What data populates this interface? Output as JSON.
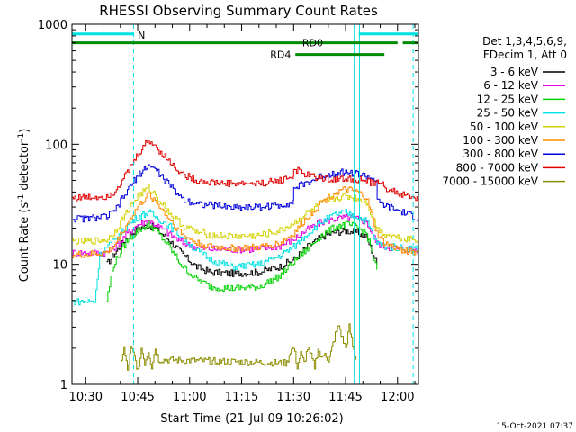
{
  "chart_data": {
    "type": "line",
    "title": "RHESSI Observing Summary Count Rates",
    "xlabel": "Start Time (21-Jul-09 10:26:02)",
    "ylabel_main": "Count Rate (s",
    "ylabel_sup1": "-1",
    "ylabel_mid": " detector",
    "ylabel_sup2": "-1",
    "ylabel_end": ")",
    "y_scale": "log",
    "ylim": [
      1,
      1000
    ],
    "xlim_minutes": [
      26.03,
      126.03
    ],
    "y_ticks": [
      {
        "value": 1,
        "label": "1"
      },
      {
        "value": 10,
        "label": "10"
      },
      {
        "value": 100,
        "label": "100"
      },
      {
        "value": 1000,
        "label": "1000"
      }
    ],
    "x_ticks": [
      {
        "minute": 30,
        "label": "10:30"
      },
      {
        "minute": 45,
        "label": "10:45"
      },
      {
        "minute": 60,
        "label": "11:00"
      },
      {
        "minute": 75,
        "label": "11:15"
      },
      {
        "minute": 90,
        "label": "11:30"
      },
      {
        "minute": 105,
        "label": "11:45"
      },
      {
        "minute": 120,
        "label": "12:00"
      }
    ],
    "legend_header": [
      "Det 1,3,4,5,6,9,",
      "FDecim 1, Att 0"
    ],
    "series": [
      {
        "name": "3 - 6 keV",
        "color": "#000000",
        "x": [
          36,
          38,
          42,
          45,
          48,
          50,
          54,
          58,
          62,
          66,
          72,
          80,
          86,
          90,
          94,
          98,
          102,
          105,
          108,
          111,
          114
        ],
        "y": [
          10,
          12,
          17,
          20,
          21,
          20,
          16,
          12,
          9.5,
          8.6,
          8.4,
          8.6,
          9.6,
          11,
          14,
          17,
          18.5,
          19,
          18.5,
          17,
          10
        ]
      },
      {
        "name": "6 - 12 keV",
        "color": "#e100e1",
        "x": [
          26,
          30,
          36,
          38,
          42,
          45,
          48,
          50,
          54,
          58,
          62,
          66,
          72,
          80,
          86,
          90,
          94,
          98,
          102,
          105,
          108,
          111,
          114,
          116,
          120,
          126
        ],
        "y": [
          12.5,
          12.5,
          12.5,
          13.5,
          18,
          21.5,
          23,
          21.5,
          18,
          15,
          13.8,
          13.4,
          13.3,
          13.4,
          14.2,
          16.2,
          19.5,
          22.5,
          24,
          24.5,
          24,
          22.5,
          15,
          14,
          13.5,
          13.2
        ]
      },
      {
        "name": "12 - 25 keV",
        "color": "#00d200",
        "x": [
          36,
          38,
          42,
          45,
          48,
          50,
          54,
          58,
          62,
          66,
          72,
          80,
          86,
          90,
          94,
          98,
          102,
          105,
          108,
          111,
          114
        ],
        "y": [
          5,
          10,
          16,
          19,
          21.5,
          19.5,
          14,
          9.5,
          7.5,
          6.5,
          6.3,
          6.5,
          8,
          10.5,
          13.5,
          17.5,
          20.5,
          21.5,
          20.5,
          18,
          9
        ]
      },
      {
        "name": "25 - 50 keV",
        "color": "#00e1e1",
        "x": [
          26,
          30,
          32.6,
          34,
          36,
          38,
          42,
          45,
          48,
          50,
          54,
          58,
          62,
          66,
          72,
          80,
          86,
          90,
          94,
          98,
          102,
          105,
          108,
          111,
          114,
          116,
          120,
          126
        ],
        "y": [
          4.9,
          4.9,
          4.9,
          12,
          14,
          15.5,
          21,
          25,
          27,
          25,
          21,
          16.5,
          13,
          11,
          9.5,
          10,
          11.8,
          14,
          18,
          22.5,
          26,
          27,
          25,
          23,
          15,
          14.2,
          13.8,
          13.5
        ]
      },
      {
        "name": "50 - 100 keV",
        "color": "#d2d200",
        "x": [
          26,
          30,
          36,
          38,
          42,
          45,
          48,
          50,
          54,
          58,
          62,
          66,
          72,
          80,
          86,
          90,
          94,
          98,
          102,
          105,
          108,
          111,
          114,
          116,
          120,
          126
        ],
        "y": [
          15.5,
          15.5,
          16,
          18,
          28,
          37,
          43,
          38,
          27,
          21,
          18.5,
          17.5,
          17,
          17.3,
          19,
          22,
          27,
          32,
          35.5,
          37,
          35.5,
          33,
          20,
          18,
          16.8,
          16
        ]
      },
      {
        "name": "100 - 300 keV",
        "color": "#ff8c00",
        "x": [
          26,
          30,
          36,
          38,
          42,
          45,
          48,
          50,
          54,
          58,
          62,
          66,
          72,
          80,
          86,
          90,
          94,
          98,
          102,
          105,
          108,
          111,
          114,
          116,
          120,
          126
        ],
        "y": [
          12,
          12,
          12.5,
          14,
          22,
          30,
          38,
          34,
          24,
          17.5,
          15,
          14,
          13.6,
          13.8,
          15,
          18,
          25,
          33,
          39.5,
          42,
          40,
          36,
          18,
          15,
          13.4,
          12.5
        ]
      },
      {
        "name": "300 - 800 keV",
        "color": "#0000dc",
        "x": [
          26,
          30,
          36,
          38,
          42,
          45,
          48,
          50,
          54,
          58,
          62,
          66,
          72,
          80,
          86,
          89.9,
          90,
          94,
          98,
          102,
          105,
          108,
          111,
          114,
          114.1,
          116,
          120,
          126
        ],
        "y": [
          24,
          24,
          25,
          27,
          41,
          55,
          67,
          62,
          46,
          35,
          32,
          31,
          30,
          30,
          31,
          33,
          43,
          48,
          54,
          58,
          58.5,
          57,
          54,
          50,
          33,
          31,
          28,
          24
        ]
      },
      {
        "name": "800 - 7000 keV",
        "color": "#e10000",
        "x": [
          26,
          30,
          36,
          38,
          42,
          45,
          48,
          50,
          54,
          58,
          62,
          66,
          72,
          80,
          86,
          89.9,
          90,
          94,
          98,
          102,
          105,
          108,
          111,
          114,
          114.1,
          116,
          120,
          126
        ],
        "y": [
          36,
          36,
          37,
          40,
          58,
          82,
          108,
          97,
          72,
          56,
          50,
          48,
          47,
          47,
          50,
          54,
          62,
          55,
          52,
          51,
          52,
          51,
          49,
          46,
          52,
          44,
          39,
          35
        ]
      },
      {
        "name": "7000 - 15000 keV",
        "color": "#8c8c00",
        "x": [
          40,
          41,
          42,
          43,
          44,
          45,
          46,
          47,
          48,
          49,
          50,
          51,
          88,
          89,
          90,
          91,
          92,
          93,
          94,
          95,
          96,
          97,
          98,
          99,
          100,
          101,
          102,
          103,
          104,
          105,
          106,
          107,
          108
        ],
        "y": [
          1.5,
          2,
          1.3,
          2,
          1.7,
          1.3,
          2,
          1.5,
          1.9,
          1.4,
          2,
          1.6,
          1.5,
          1.9,
          2,
          1.4,
          1.8,
          1.5,
          2,
          1.7,
          1.4,
          2,
          1.6,
          1.9,
          1.5,
          2,
          2.6,
          3.1,
          2.4,
          2,
          3,
          2.1,
          1.6
        ]
      }
    ],
    "annotations": [
      {
        "label": "N",
        "color": "#00e1e1",
        "x_start": 26,
        "x_end": 44,
        "y": 830
      },
      {
        "label": "",
        "color": "#00e1e1",
        "x_start": 108.8,
        "x_end": 126,
        "y": 830
      },
      {
        "label": "RD0",
        "color": "#008c00",
        "x_start": 26,
        "x_end": 120,
        "y": 700
      },
      {
        "label": "",
        "color": "#008c00",
        "x_start": 121.5,
        "x_end": 126,
        "y": 700
      },
      {
        "label": "RD4",
        "color": "#008c00",
        "x_start": 90.5,
        "x_end": 116.2,
        "y": 560
      }
    ],
    "vlines": [
      {
        "minute": 43.8,
        "style": "dashed",
        "color": "#00e1e1"
      },
      {
        "minute": 107.5,
        "style": "solid",
        "color": "#00e1e1"
      },
      {
        "minute": 109,
        "style": "solid",
        "color": "#00e1e1"
      },
      {
        "minute": 124.5,
        "style": "dashed",
        "color": "#00e1e1"
      }
    ],
    "legend_placement": "right"
  },
  "footer": {
    "timestamp": "15-Oct-2021 07:37"
  }
}
